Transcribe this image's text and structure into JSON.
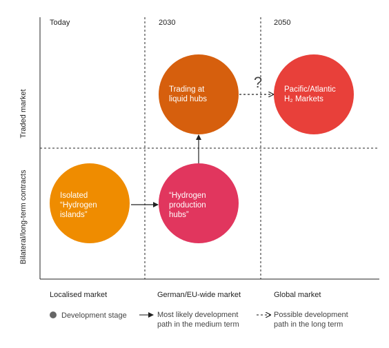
{
  "columns": [
    "Today",
    "2030",
    "2050"
  ],
  "rows": [
    "Traded market",
    "Bilateral/long-term contracts"
  ],
  "nodes": [
    {
      "lines": [
        "Isolated",
        "“Hydrogen",
        "islands”"
      ]
    },
    {
      "lines": [
        "“Hydrogen",
        "production",
        "hubs”"
      ]
    },
    {
      "lines": [
        "Trading at",
        "liquid hubs"
      ]
    },
    {
      "lines": [
        "Pacific/Atlantic",
        "H₂ Markets"
      ]
    }
  ],
  "uncertain_mark": "?",
  "markets": [
    "Localised market",
    "German/EU-wide market",
    "Global market"
  ],
  "legend": {
    "stage": "Development stage",
    "likely": [
      "Most likely development",
      "path in the medium term"
    ],
    "possible": [
      "Possible development",
      "path in the long term"
    ]
  }
}
